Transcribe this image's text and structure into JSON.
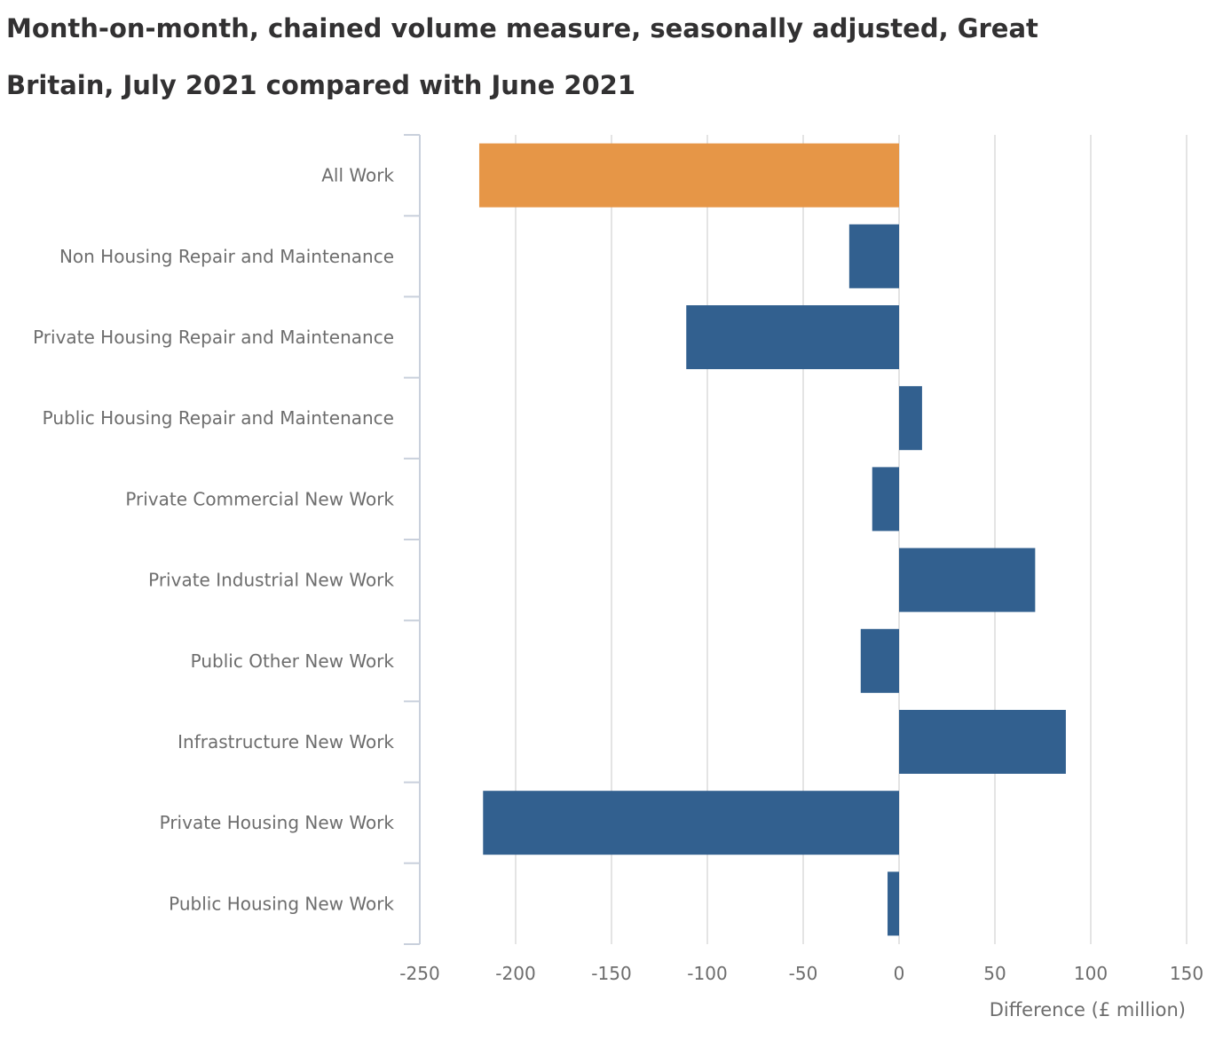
{
  "chart_data": {
    "type": "bar",
    "orientation": "horizontal",
    "title": "Month-on-month, chained volume measure, seasonally adjusted, Great Britain, July 2021 compared with June 2021",
    "xlabel": "Difference (£ million)",
    "ylabel": "",
    "xlim": [
      -250,
      150
    ],
    "xticks": [
      -250,
      -200,
      -150,
      -100,
      -50,
      0,
      50,
      100,
      150
    ],
    "grid": true,
    "categories": [
      "All Work",
      "Non Housing Repair and Maintenance",
      "Private Housing Repair and Maintenance",
      "Public Housing Repair and Maintenance",
      "Private Commercial New Work",
      "Private Industrial New Work",
      "Public Other New Work",
      "Infrastructure New Work",
      "Private Housing New Work",
      "Public Housing New Work"
    ],
    "values": [
      -219,
      -26,
      -111,
      12,
      -14,
      71,
      -20,
      87,
      -217,
      -6
    ],
    "colors": {
      "highlight": "#e69647",
      "default": "#32608f",
      "grid": "#dcdcdc",
      "axis": "#c9d0dc"
    },
    "highlight_categories": [
      "All Work"
    ]
  }
}
